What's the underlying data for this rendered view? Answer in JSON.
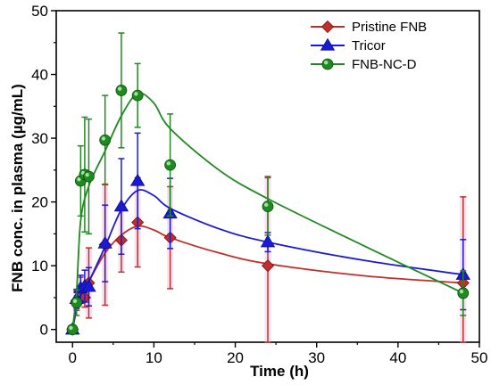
{
  "chart_data": {
    "type": "line",
    "title": "",
    "xlabel": "Time (h)",
    "ylabel": "FNB conc. in plasma (µg/mL)",
    "xlim": [
      -2,
      50
    ],
    "ylim": [
      -2,
      50
    ],
    "xticks": [
      0,
      10,
      20,
      30,
      40,
      50
    ],
    "yticks": [
      0,
      10,
      20,
      30,
      40,
      50
    ],
    "legend_position": "top-right",
    "series": [
      {
        "name": "Pristine FNB",
        "color": "#c0302b",
        "marker": "diamond",
        "x": [
          0,
          0.5,
          1,
          1.5,
          2,
          4,
          6,
          8,
          12,
          24,
          48
        ],
        "y": [
          0,
          4.5,
          6.2,
          5.0,
          7.3,
          13.3,
          14.0,
          16.8,
          14.4,
          10.0,
          7.3
        ],
        "err": [
          0.3,
          1.5,
          2.0,
          1.5,
          5.5,
          9.5,
          5.0,
          7.0,
          8.0,
          14.0,
          13.5
        ],
        "fit": [
          [
            0,
            0
          ],
          [
            0.5,
            3
          ],
          [
            1,
            5
          ],
          [
            2,
            7.5
          ],
          [
            4,
            12
          ],
          [
            6,
            14.8
          ],
          [
            8,
            16.2
          ],
          [
            10,
            15.6
          ],
          [
            12,
            14.4
          ],
          [
            18,
            12
          ],
          [
            24,
            10.3
          ],
          [
            36,
            8.4
          ],
          [
            48,
            7.3
          ]
        ]
      },
      {
        "name": "Tricor",
        "color": "#1a1ad6",
        "marker": "triangle",
        "x": [
          0,
          0.5,
          1,
          1.5,
          2,
          4,
          6,
          8,
          12,
          24,
          48
        ],
        "y": [
          0,
          4.8,
          6.5,
          6.8,
          6.7,
          13.5,
          19.3,
          23.3,
          18.2,
          13.7,
          8.6
        ],
        "err": [
          0.3,
          1.5,
          2.0,
          2.5,
          3.0,
          6.0,
          7.5,
          7.5,
          5.5,
          1.5,
          5.5
        ],
        "fit": [
          [
            0,
            0
          ],
          [
            0.5,
            3.5
          ],
          [
            1,
            5.5
          ],
          [
            2,
            7.5
          ],
          [
            4,
            13
          ],
          [
            6,
            18.8
          ],
          [
            8,
            21.8
          ],
          [
            10,
            21
          ],
          [
            12,
            19
          ],
          [
            18,
            15.8
          ],
          [
            24,
            13.7
          ],
          [
            36,
            10.8
          ],
          [
            48,
            8.6
          ]
        ]
      },
      {
        "name": "FNB-NC-D",
        "color": "#1f8a1f",
        "marker": "circle",
        "x": [
          0,
          0.5,
          1,
          1.5,
          2,
          4,
          6,
          8,
          12,
          24,
          48
        ],
        "y": [
          0,
          4.2,
          23.3,
          24.3,
          24.0,
          29.7,
          37.5,
          36.7,
          25.8,
          19.3,
          5.7
        ],
        "err": [
          0.3,
          2.0,
          5.5,
          9.0,
          9.0,
          7.0,
          9.0,
          5.0,
          8.0,
          4.5,
          3.5
        ],
        "fit": [
          [
            0,
            0
          ],
          [
            0.5,
            6
          ],
          [
            1,
            17
          ],
          [
            2,
            22.5
          ],
          [
            4,
            28
          ],
          [
            6,
            33.5
          ],
          [
            8,
            37
          ],
          [
            10,
            35.5
          ],
          [
            12,
            31.5
          ],
          [
            18,
            25
          ],
          [
            24,
            20.5
          ],
          [
            36,
            13
          ],
          [
            48,
            5.7
          ]
        ]
      }
    ]
  }
}
